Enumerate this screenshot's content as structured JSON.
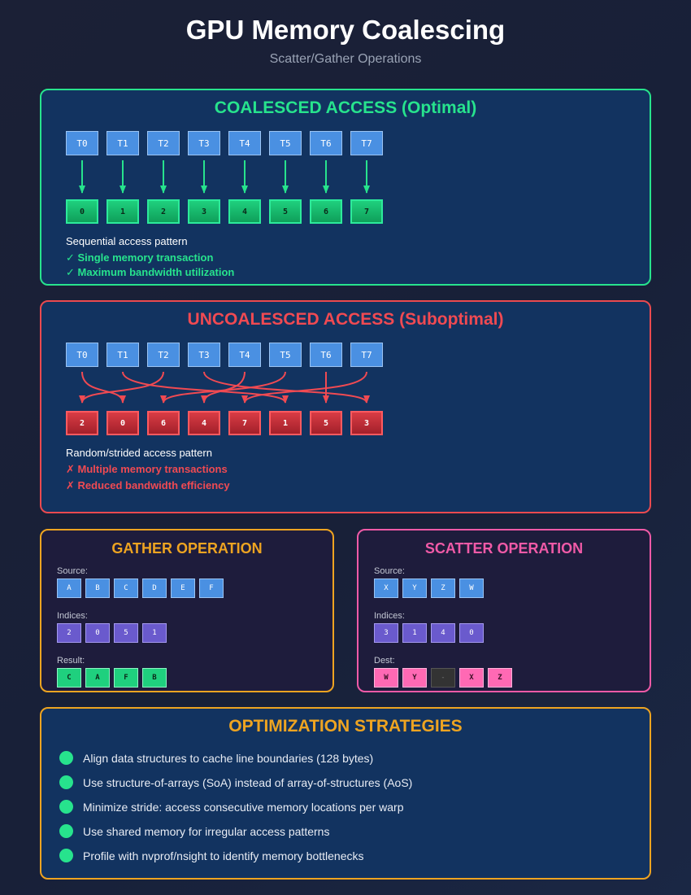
{
  "header": {
    "title": "GPU Memory Coalescing",
    "subtitle": "Scatter/Gather Operations"
  },
  "coalesced": {
    "title": "COALESCED ACCESS (Optimal)",
    "threads": [
      "T0",
      "T1",
      "T2",
      "T3",
      "T4",
      "T5",
      "T6",
      "T7"
    ],
    "memory": [
      "0",
      "1",
      "2",
      "3",
      "4",
      "5",
      "6",
      "7"
    ],
    "access_map": [
      0,
      1,
      2,
      3,
      4,
      5,
      6,
      7
    ],
    "pattern": "Sequential access pattern",
    "benefits": [
      "✓ Single memory transaction",
      "✓ Maximum bandwidth utilization"
    ],
    "color": "#27e38d"
  },
  "uncoalesced": {
    "title": "UNCOALESCED ACCESS (Suboptimal)",
    "threads": [
      "T0",
      "T1",
      "T2",
      "T3",
      "T4",
      "T5",
      "T6",
      "T7"
    ],
    "memory": [
      "2",
      "0",
      "6",
      "4",
      "7",
      "1",
      "5",
      "3"
    ],
    "access_map": [
      1,
      5,
      0,
      7,
      3,
      2,
      6,
      4
    ],
    "pattern": "Random/strided access pattern",
    "drawbacks": [
      "✗ Multiple memory transactions",
      "✗ Reduced bandwidth efficiency"
    ],
    "color": "#f04a52"
  },
  "gather": {
    "title": "GATHER OPERATION",
    "source_label": "Source:",
    "source": [
      "A",
      "B",
      "C",
      "D",
      "E",
      "F"
    ],
    "indices_label": "Indices:",
    "indices": [
      "2",
      "0",
      "5",
      "1"
    ],
    "result_label": "Result:",
    "result": [
      "C",
      "A",
      "F",
      "B"
    ]
  },
  "scatter": {
    "title": "SCATTER OPERATION",
    "source_label": "Source:",
    "source": [
      "X",
      "Y",
      "Z",
      "W"
    ],
    "indices_label": "Indices:",
    "indices": [
      "3",
      "1",
      "4",
      "0"
    ],
    "dest_label": "Dest:",
    "dest": [
      "W",
      "Y",
      "-",
      "X",
      "Z"
    ]
  },
  "optimization": {
    "title": "OPTIMIZATION STRATEGIES",
    "items": [
      "Align data structures to cache line boundaries (128 bytes)",
      "Use structure-of-arrays (SoA) instead of array-of-structures (AoS)",
      "Minimize stride: access consecutive memory locations per warp",
      "Use shared memory for irregular access patterns",
      "Profile with nvprof/nsight to identify memory bottlenecks"
    ]
  }
}
